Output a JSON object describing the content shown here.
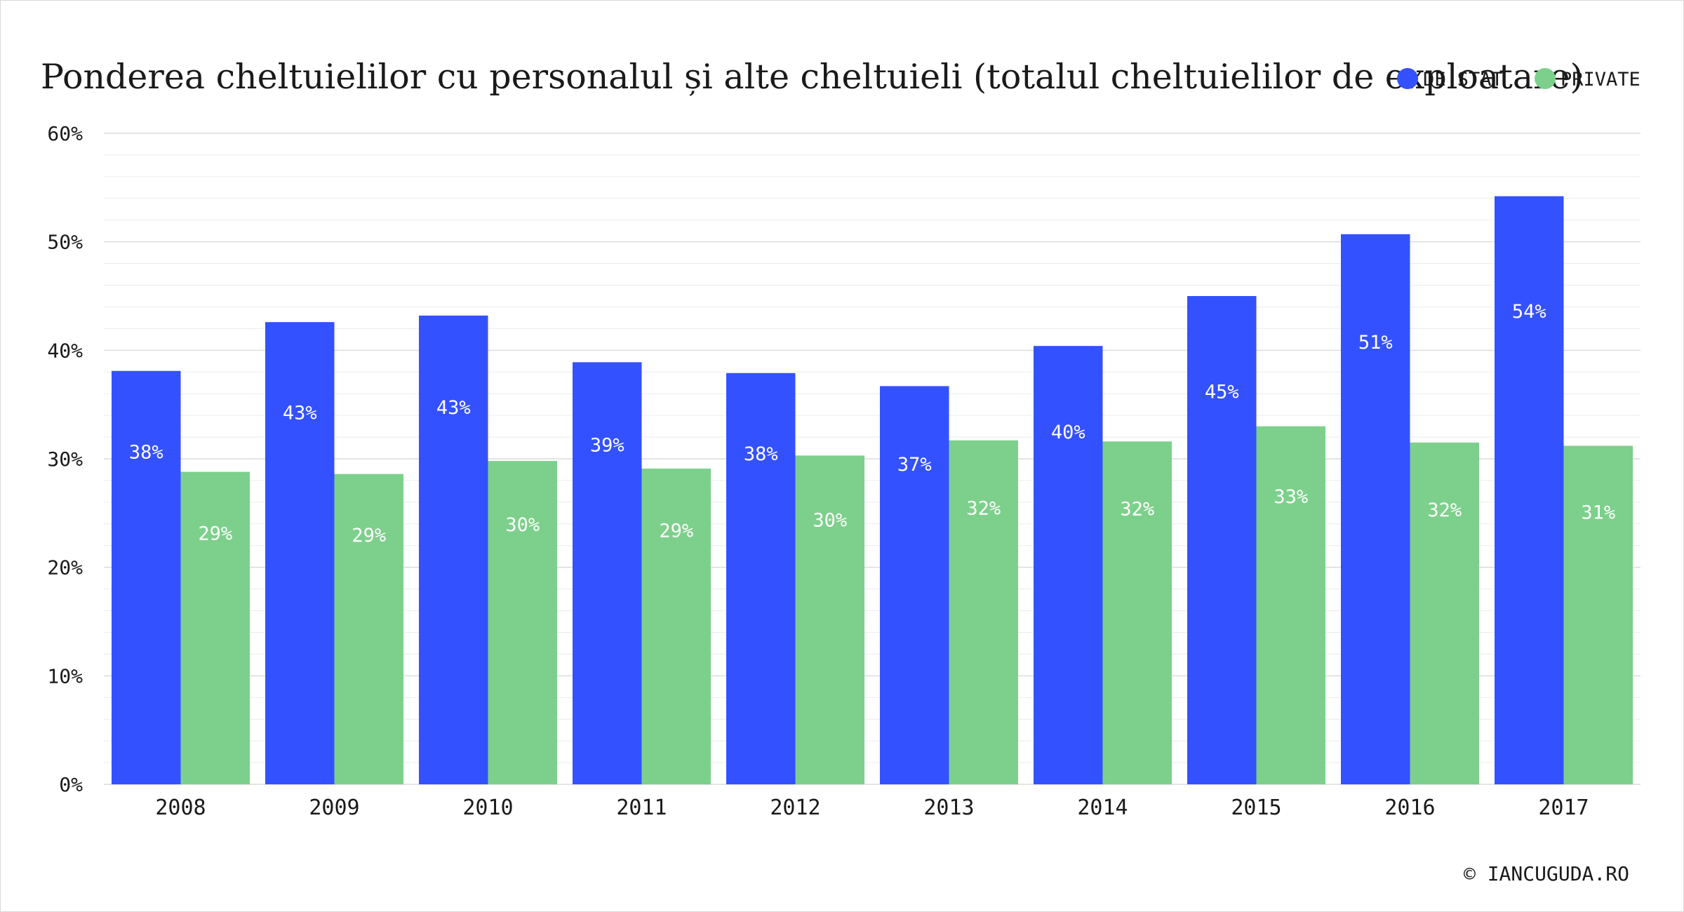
{
  "chart_data": {
    "type": "bar",
    "title": "Ponderea cheltuielilor cu personalul și alte cheltuieli (totalul cheltuielilor de exploatare)",
    "xlabel": "",
    "ylabel": "",
    "ylim": [
      0,
      60
    ],
    "yticks": [
      0,
      10,
      20,
      30,
      40,
      50,
      60
    ],
    "ytick_suffix": "%",
    "grid": true,
    "legend_position": "top-right",
    "categories": [
      "2008",
      "2009",
      "2010",
      "2011",
      "2012",
      "2013",
      "2014",
      "2015",
      "2016",
      "2017"
    ],
    "series": [
      {
        "name": "DE STAT",
        "color": "#3451ff",
        "values": [
          38.1,
          42.6,
          43.2,
          38.9,
          37.9,
          36.7,
          40.4,
          45.0,
          50.7,
          54.2
        ],
        "labels": [
          "38%",
          "43%",
          "43%",
          "39%",
          "38%",
          "37%",
          "40%",
          "45%",
          "51%",
          "54%"
        ]
      },
      {
        "name": "PRIVATE",
        "color": "#7dd08b",
        "values": [
          28.8,
          28.6,
          29.8,
          29.1,
          30.3,
          31.7,
          31.6,
          33.0,
          31.5,
          31.2
        ],
        "labels": [
          "29%",
          "29%",
          "30%",
          "29%",
          "30%",
          "32%",
          "32%",
          "33%",
          "32%",
          "31%"
        ]
      }
    ]
  },
  "credit": "© IANCUGUDA.RO"
}
